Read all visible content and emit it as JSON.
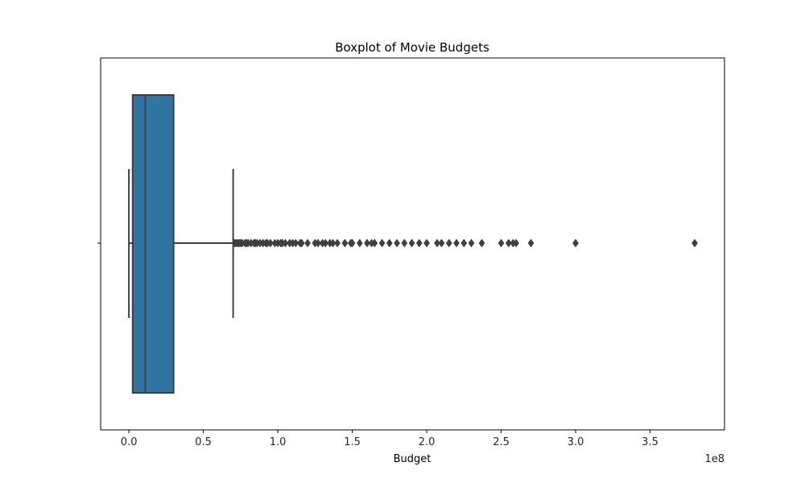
{
  "chart_data": {
    "type": "boxplot",
    "title": "Boxplot of Movie Budgets",
    "xlabel": "Budget",
    "ylabel": "",
    "x_offset_text": "1e8",
    "orientation": "horizontal",
    "xlim": [
      -19000000.0,
      400000000.0
    ],
    "xticks": [
      0,
      50000000.0,
      100000000.0,
      150000000.0,
      200000000.0,
      250000000.0,
      300000000.0,
      350000000.0
    ],
    "xtick_labels": [
      "0.0",
      "0.5",
      "1.0",
      "1.5",
      "2.0",
      "2.5",
      "3.0",
      "3.5"
    ],
    "grid": false,
    "box": {
      "whisker_low": 0,
      "q1": 2500000,
      "median": 11000000,
      "q3": 30000000,
      "whisker_high": 70000000
    },
    "outliers": [
      71000000,
      72000000,
      73000000,
      74000000,
      75000000,
      76000000,
      78000000,
      79000000,
      80000000,
      82000000,
      84000000,
      85000000,
      86000000,
      88000000,
      90000000,
      92000000,
      93000000,
      95000000,
      98000000,
      100000000,
      102000000,
      103000000,
      105000000,
      108000000,
      110000000,
      112000000,
      115000000,
      116000000,
      120000000,
      125000000,
      127000000,
      130000000,
      132000000,
      135000000,
      137000000,
      140000000,
      145000000,
      149000000,
      150000000,
      155000000,
      160000000,
      163000000,
      165000000,
      170000000,
      175000000,
      180000000,
      185000000,
      190000000,
      195000000,
      200000000,
      207000000,
      210000000,
      215000000,
      220000000,
      225000000,
      230000000,
      237000000,
      250000000,
      255000000,
      258000000,
      260000000,
      270000000,
      300000000,
      380000000
    ],
    "colors": {
      "box_fill": "#3274a1",
      "lines": "#3f3f3f",
      "outlier": "#3f3f3f",
      "frame": "#000000"
    }
  }
}
